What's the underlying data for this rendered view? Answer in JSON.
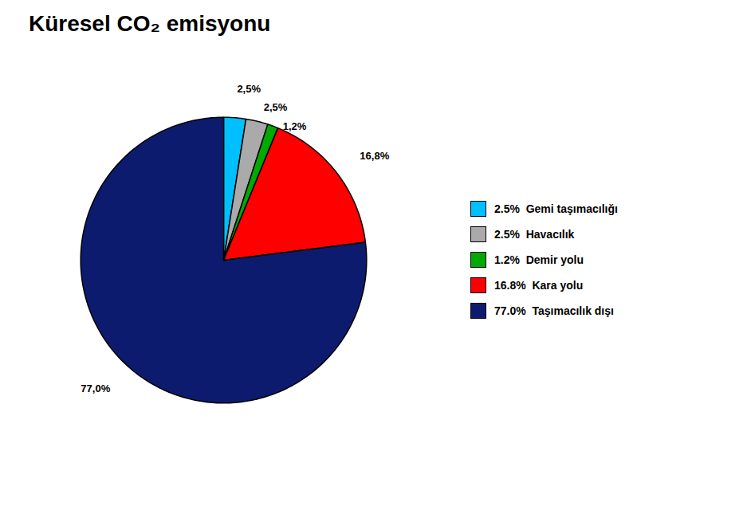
{
  "chart_data": {
    "type": "pie",
    "title": "Küresel CO₂ emisyonu",
    "categories": [
      "2.5%  Gemi taşımacılığı",
      "2.5%  Havacılık",
      "1.2%  Demir yolu",
      "16.8%  Kara yolu",
      "77.0%  Taşımacılık dışı"
    ],
    "values": [
      2.5,
      2.5,
      1.2,
      16.8,
      77.0
    ],
    "value_labels": [
      "2,5%",
      "2,5%",
      "1,2%",
      "16,8%",
      "77,0%"
    ],
    "colors": [
      "#00BFFF",
      "#AAAAAA",
      "#00AA00",
      "#FF0000",
      "#0D1B6E"
    ],
    "legend": "right",
    "data_labels": true
  }
}
